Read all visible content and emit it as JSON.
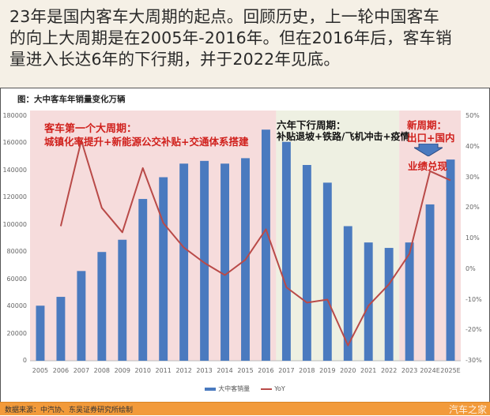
{
  "caption": {
    "lines": [
      "23年是国内客车大周期的起点。回顾历史，上一轮中国客车",
      "的向上大周期是在2005年-2016年。但在2016年后，客车销",
      "量进入长达6年的下行期，并于2022年见底。"
    ]
  },
  "chart_title": "图：大中客车年销量变化万辆",
  "annotations": {
    "cycle1_title": "客车第一个大周期：",
    "cycle1_body": "城镇化率提升+新能源公交补贴+交通体系搭建",
    "down_title": "六年下行周期：",
    "down_body": "补贴退坡+铁路/飞机冲击+疫情",
    "new_title": "新周期：",
    "new_body": "出口+国内",
    "new_result": "业绩兑现"
  },
  "legend": {
    "bar_label": "大中客销量",
    "line_label": "YoY"
  },
  "footer": {
    "source": "数据来源：中汽协、东吴证券研究所绘制",
    "watermark": "汽车之家"
  },
  "colors": {
    "bar": "#4a7abf",
    "line": "#b94a48",
    "cycle_shade": "#f6dcdc",
    "down_shade": "#eef0e2",
    "footer": "#f29a3a"
  },
  "chart_data": {
    "type": "bar",
    "title": "图：大中客车年销量变化万辆",
    "xlabel": "",
    "ylabel": "",
    "categories": [
      "2005",
      "2006",
      "2007",
      "2008",
      "2009",
      "2010",
      "2011",
      "2012",
      "2013",
      "2014",
      "2015",
      "2016",
      "2017",
      "2018",
      "2019",
      "2020",
      "2021",
      "2022",
      "2023",
      "2024E",
      "2025E"
    ],
    "series": [
      {
        "name": "大中客销量",
        "type": "bar",
        "axis": "left",
        "values": [
          40500,
          47000,
          66000,
          80000,
          89000,
          119000,
          135000,
          145000,
          147000,
          145000,
          149000,
          170000,
          161000,
          144000,
          131000,
          99000,
          87000,
          83000,
          87000,
          115000,
          148000
        ]
      },
      {
        "name": "YoY",
        "type": "line",
        "axis": "right",
        "unit": "%",
        "values": [
          null,
          14,
          42,
          20,
          12,
          33,
          15,
          7,
          2,
          -2,
          3,
          13,
          -6,
          -11,
          -10,
          -25,
          -12,
          -5,
          5,
          32,
          29
        ]
      }
    ],
    "ylim_left": [
      0,
      180000
    ],
    "yticks_left": [
      "0",
      "20000",
      "40000",
      "60000",
      "80000",
      "100000",
      "120000",
      "140000",
      "160000",
      "180000"
    ],
    "ylim_right": [
      -30,
      50
    ],
    "yticks_right": [
      "-30%",
      "-20%",
      "-10%",
      "0%",
      "10%",
      "20%",
      "30%",
      "40%",
      "50%"
    ],
    "shaded_regions": [
      {
        "from": "2005",
        "to": "2016",
        "label": "客车第一个大周期"
      },
      {
        "from": "2017",
        "to": "2022",
        "label": "六年下行周期"
      },
      {
        "from": "2023",
        "to": "2025E",
        "label": "新周期"
      }
    ],
    "grid": false,
    "legend_position": "bottom"
  }
}
